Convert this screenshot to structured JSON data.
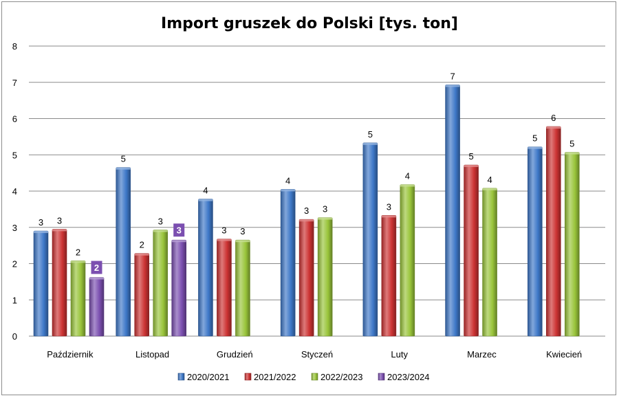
{
  "chart_data": {
    "type": "bar",
    "title": "Import gruszek do Polski [tys. ton]",
    "xlabel": "",
    "ylabel": "",
    "ylim": [
      0,
      8
    ],
    "yticks": [
      0,
      1,
      2,
      3,
      4,
      5,
      6,
      7,
      8
    ],
    "grid": true,
    "legend_position": "bottom",
    "categories": [
      "Październik",
      "Listopad",
      "Grudzień",
      "Styczeń",
      "Luty",
      "Marzec",
      "Kwiecień"
    ],
    "series": [
      {
        "name": "2020/2021",
        "color": "#3e78c8",
        "values": [
          2.9,
          4.65,
          3.78,
          4.05,
          5.33,
          6.93,
          5.22
        ],
        "labels": [
          "3",
          "5",
          "4",
          "4",
          "5",
          "7",
          "5"
        ]
      },
      {
        "name": "2021/2022",
        "color": "#cc3333",
        "values": [
          2.95,
          2.28,
          2.68,
          3.22,
          3.33,
          4.72,
          5.78
        ],
        "labels": [
          "3",
          "2",
          "3",
          "3",
          "3",
          "5",
          "6"
        ]
      },
      {
        "name": "2022/2023",
        "color": "#99c43a",
        "values": [
          2.08,
          2.93,
          2.65,
          3.27,
          4.18,
          4.08,
          5.07
        ],
        "labels": [
          "2",
          "3",
          "3",
          "3",
          "4",
          "4",
          "5"
        ]
      },
      {
        "name": "2023/2024",
        "color": "#7b4fb0",
        "values": [
          1.62,
          2.65,
          null,
          null,
          null,
          null,
          null
        ],
        "labels": [
          "2",
          "3",
          null,
          null,
          null,
          null,
          null
        ],
        "label_style": "highlighted"
      }
    ]
  }
}
